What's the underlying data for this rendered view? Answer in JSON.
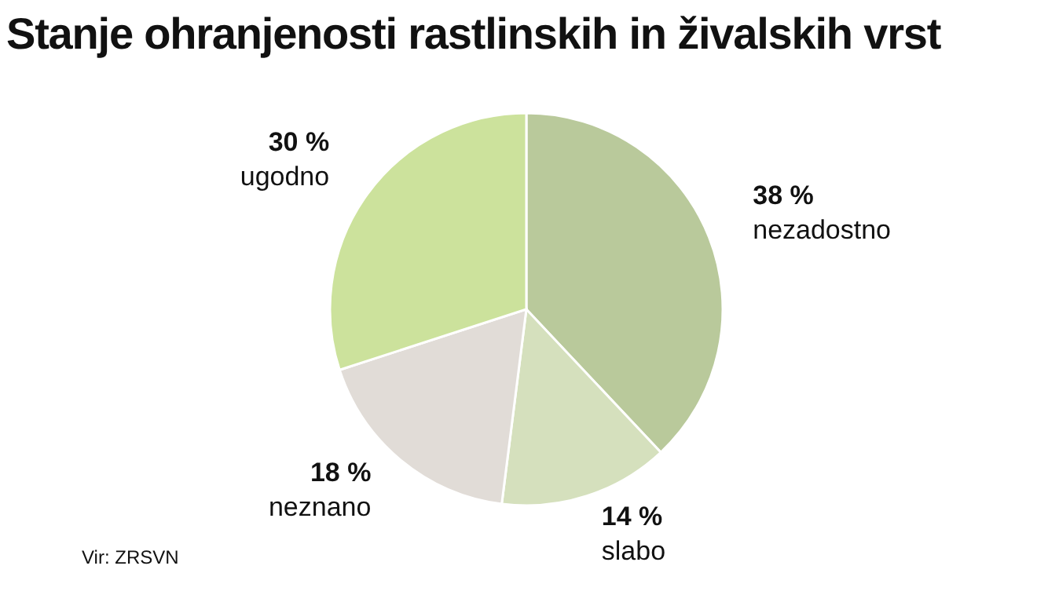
{
  "chart_data": {
    "type": "pie",
    "title": "Stanje ohranjenosti rastlinskih in živalskih vrst",
    "categories": [
      "nezadostno",
      "slabo",
      "neznano",
      "ugodno"
    ],
    "values": [
      38,
      14,
      18,
      30
    ],
    "value_labels": [
      "38 %",
      "14 %",
      "18 %",
      "30 %"
    ],
    "colors": [
      "#b9c99b",
      "#d5e0bd",
      "#e1dcd7",
      "#cce29c"
    ],
    "annotations": [
      "Vir: ZRSVN"
    ]
  }
}
